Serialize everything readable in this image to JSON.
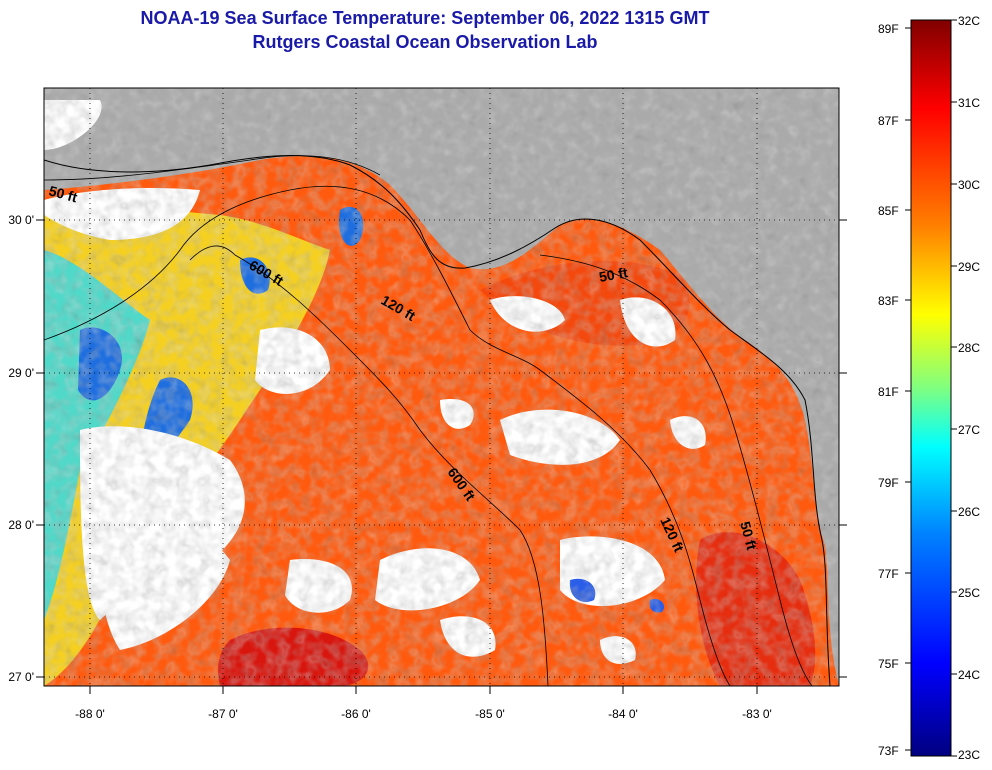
{
  "title": "NOAA-19 Sea Surface Temperature:  September 06, 2022 1315 GMT",
  "subtitle": "Rutgers Coastal Ocean Observation Lab",
  "map": {
    "lon_ticks": [
      "-88 0'",
      "-87 0'",
      "-86 0'",
      "-85 0'",
      "-84 0'",
      "-83 0'"
    ],
    "lat_ticks": [
      "30 0'",
      "29 0'",
      "28 0'",
      "27 0'"
    ],
    "contours": [
      "50 ft",
      "600 ft",
      "120 ft",
      "600 ft",
      "50 ft",
      "120 ft",
      "50 ft"
    ],
    "colors": {
      "land": "#aaaaaa",
      "cloud": "#ffffff",
      "warm": "#ff5a0e",
      "hot": "#d01010",
      "cool": "#40c0e0"
    }
  },
  "colorbar": {
    "fahrenheit": [
      "89F",
      "87F",
      "85F",
      "83F",
      "81F",
      "79F",
      "77F",
      "75F",
      "73F"
    ],
    "celsius": [
      "32C",
      "31C",
      "30C",
      "29C",
      "28C",
      "27C",
      "26C",
      "25C",
      "24C",
      "23C"
    ],
    "stops": [
      "#000080",
      "#0000ff",
      "#0080ff",
      "#00ffff",
      "#80ff80",
      "#ffff00",
      "#ff8000",
      "#ff0000",
      "#800000"
    ]
  }
}
